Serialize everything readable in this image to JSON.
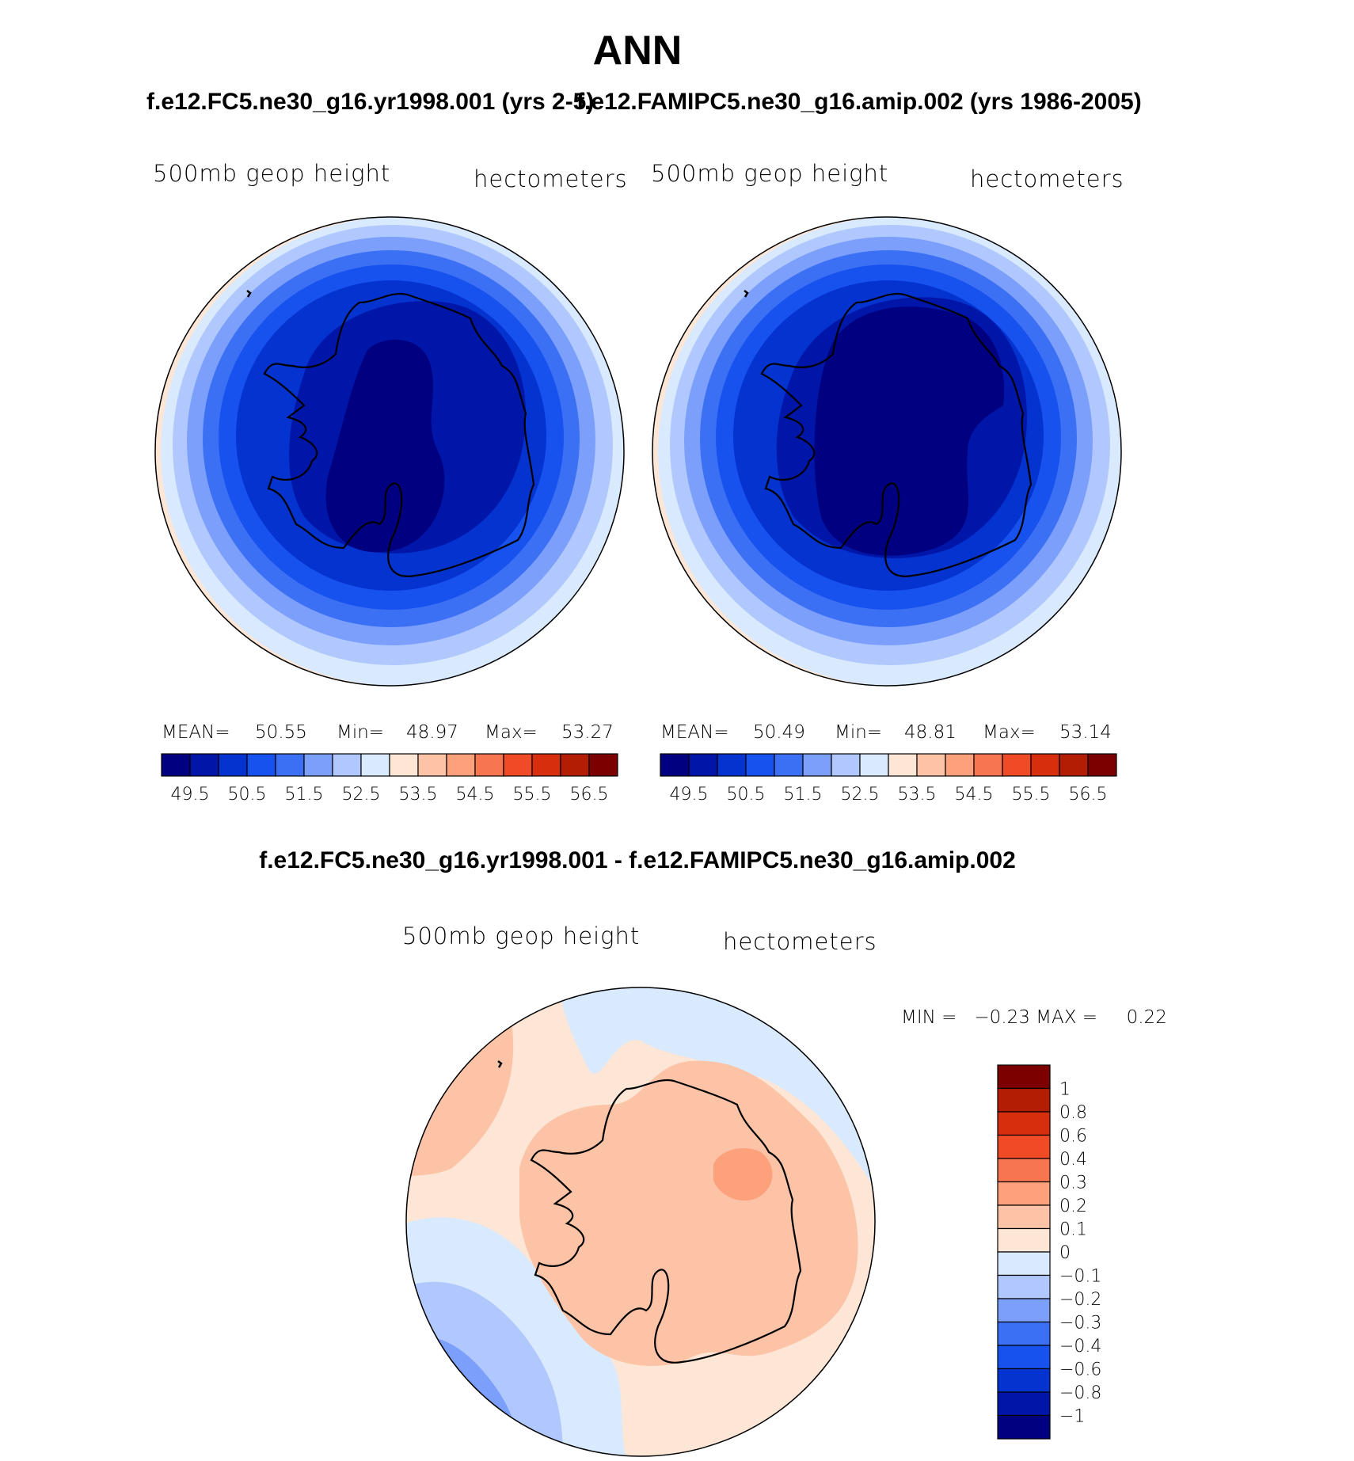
{
  "figure": {
    "title": "ANN",
    "panels": [
      {
        "case_title": "f.e12.FC5.ne30_g16.yr1998.001 (yrs 2-5)",
        "variable": "500mb geop height",
        "units": "hectometers",
        "stats": {
          "mean_label": "MEAN=",
          "mean": "50.55",
          "min_label": "Min=",
          "min": "48.97",
          "max_label": "Max=",
          "max": "53.27"
        }
      },
      {
        "case_title": "f.e12.FAMIPC5.ne30_g16.amip.002 (yrs 1986-2005)",
        "variable": "500mb geop height",
        "units": "hectometers",
        "stats": {
          "mean_label": "MEAN=",
          "mean": "50.49",
          "min_label": "Min=",
          "min": "48.81",
          "max_label": "Max=",
          "max": "53.14"
        }
      }
    ],
    "difference": {
      "title": "f.e12.FC5.ne30_g16.yr1998.001 - f.e12.FAMIPC5.ne30_g16.amip.002",
      "variable": "500mb geop height",
      "units": "hectometers",
      "minmax_text": "MIN =   −0.23 MAX =     0.22"
    }
  },
  "chart_data": [
    {
      "type": "heatmap",
      "projection": "south polar stereographic",
      "title": "f.e12.FC5.ne30_g16.yr1998.001 (yrs 2-5)",
      "variable": "500mb geop height",
      "units": "hectometers",
      "mean": 50.55,
      "min": 48.97,
      "max": 53.27,
      "colorbar_levels": [
        49,
        49.5,
        50,
        50.5,
        51,
        51.5,
        52,
        52.5,
        53,
        53.5,
        54,
        54.5,
        55,
        55.5,
        56,
        56.5
      ],
      "colorbar_tick_labels": [
        "49.5",
        "50.5",
        "51.5",
        "52.5",
        "53.5",
        "54.5",
        "55.5",
        "56.5"
      ],
      "colors": [
        "#000080",
        "#0016a8",
        "#0433d0",
        "#1752ee",
        "#3b70f5",
        "#7c9ffb",
        "#b0c8fd",
        "#d9eafe",
        "#fde6d5",
        "#fdc3a6",
        "#fda07c",
        "#f87551",
        "#ef4b27",
        "#d72f0d",
        "#b21d04",
        "#7d0000"
      ]
    },
    {
      "type": "heatmap",
      "projection": "south polar stereographic",
      "title": "f.e12.FAMIPC5.ne30_g16.amip.002 (yrs 1986-2005)",
      "variable": "500mb geop height",
      "units": "hectometers",
      "mean": 50.49,
      "min": 48.81,
      "max": 53.14,
      "colorbar_levels": [
        49,
        49.5,
        50,
        50.5,
        51,
        51.5,
        52,
        52.5,
        53,
        53.5,
        54,
        54.5,
        55,
        55.5,
        56,
        56.5
      ],
      "colorbar_tick_labels": [
        "49.5",
        "50.5",
        "51.5",
        "52.5",
        "53.5",
        "54.5",
        "55.5",
        "56.5"
      ],
      "colors": [
        "#000080",
        "#0016a8",
        "#0433d0",
        "#1752ee",
        "#3b70f5",
        "#7c9ffb",
        "#b0c8fd",
        "#d9eafe",
        "#fde6d5",
        "#fdc3a6",
        "#fda07c",
        "#f87551",
        "#ef4b27",
        "#d72f0d",
        "#b21d04",
        "#7d0000"
      ]
    },
    {
      "type": "heatmap",
      "projection": "south polar stereographic",
      "title": "f.e12.FC5.ne30_g16.yr1998.001 - f.e12.FAMIPC5.ne30_g16.amip.002",
      "variable": "500mb geop height",
      "units": "hectometers",
      "min": -0.23,
      "max": 0.22,
      "colorbar_levels": [
        -1,
        -0.8,
        -0.6,
        -0.4,
        -0.3,
        -0.2,
        -0.1,
        0,
        0.1,
        0.2,
        0.3,
        0.4,
        0.6,
        0.8,
        1
      ],
      "colorbar_tick_labels": [
        "1",
        "0.8",
        "0.6",
        "0.4",
        "0.3",
        "0.2",
        "0.1",
        "0",
        "−0.1",
        "−0.2",
        "−0.3",
        "−0.4",
        "−0.6",
        "−0.8",
        "−1"
      ],
      "colors_top_to_bottom": [
        "#7d0000",
        "#b21d04",
        "#d72f0d",
        "#ef4b27",
        "#f87551",
        "#fda07c",
        "#fdc3a6",
        "#fde6d5",
        "#d9eafe",
        "#b0c8fd",
        "#7c9ffb",
        "#3b70f5",
        "#1752ee",
        "#0433d0",
        "#0016a8",
        "#000080"
      ]
    }
  ]
}
